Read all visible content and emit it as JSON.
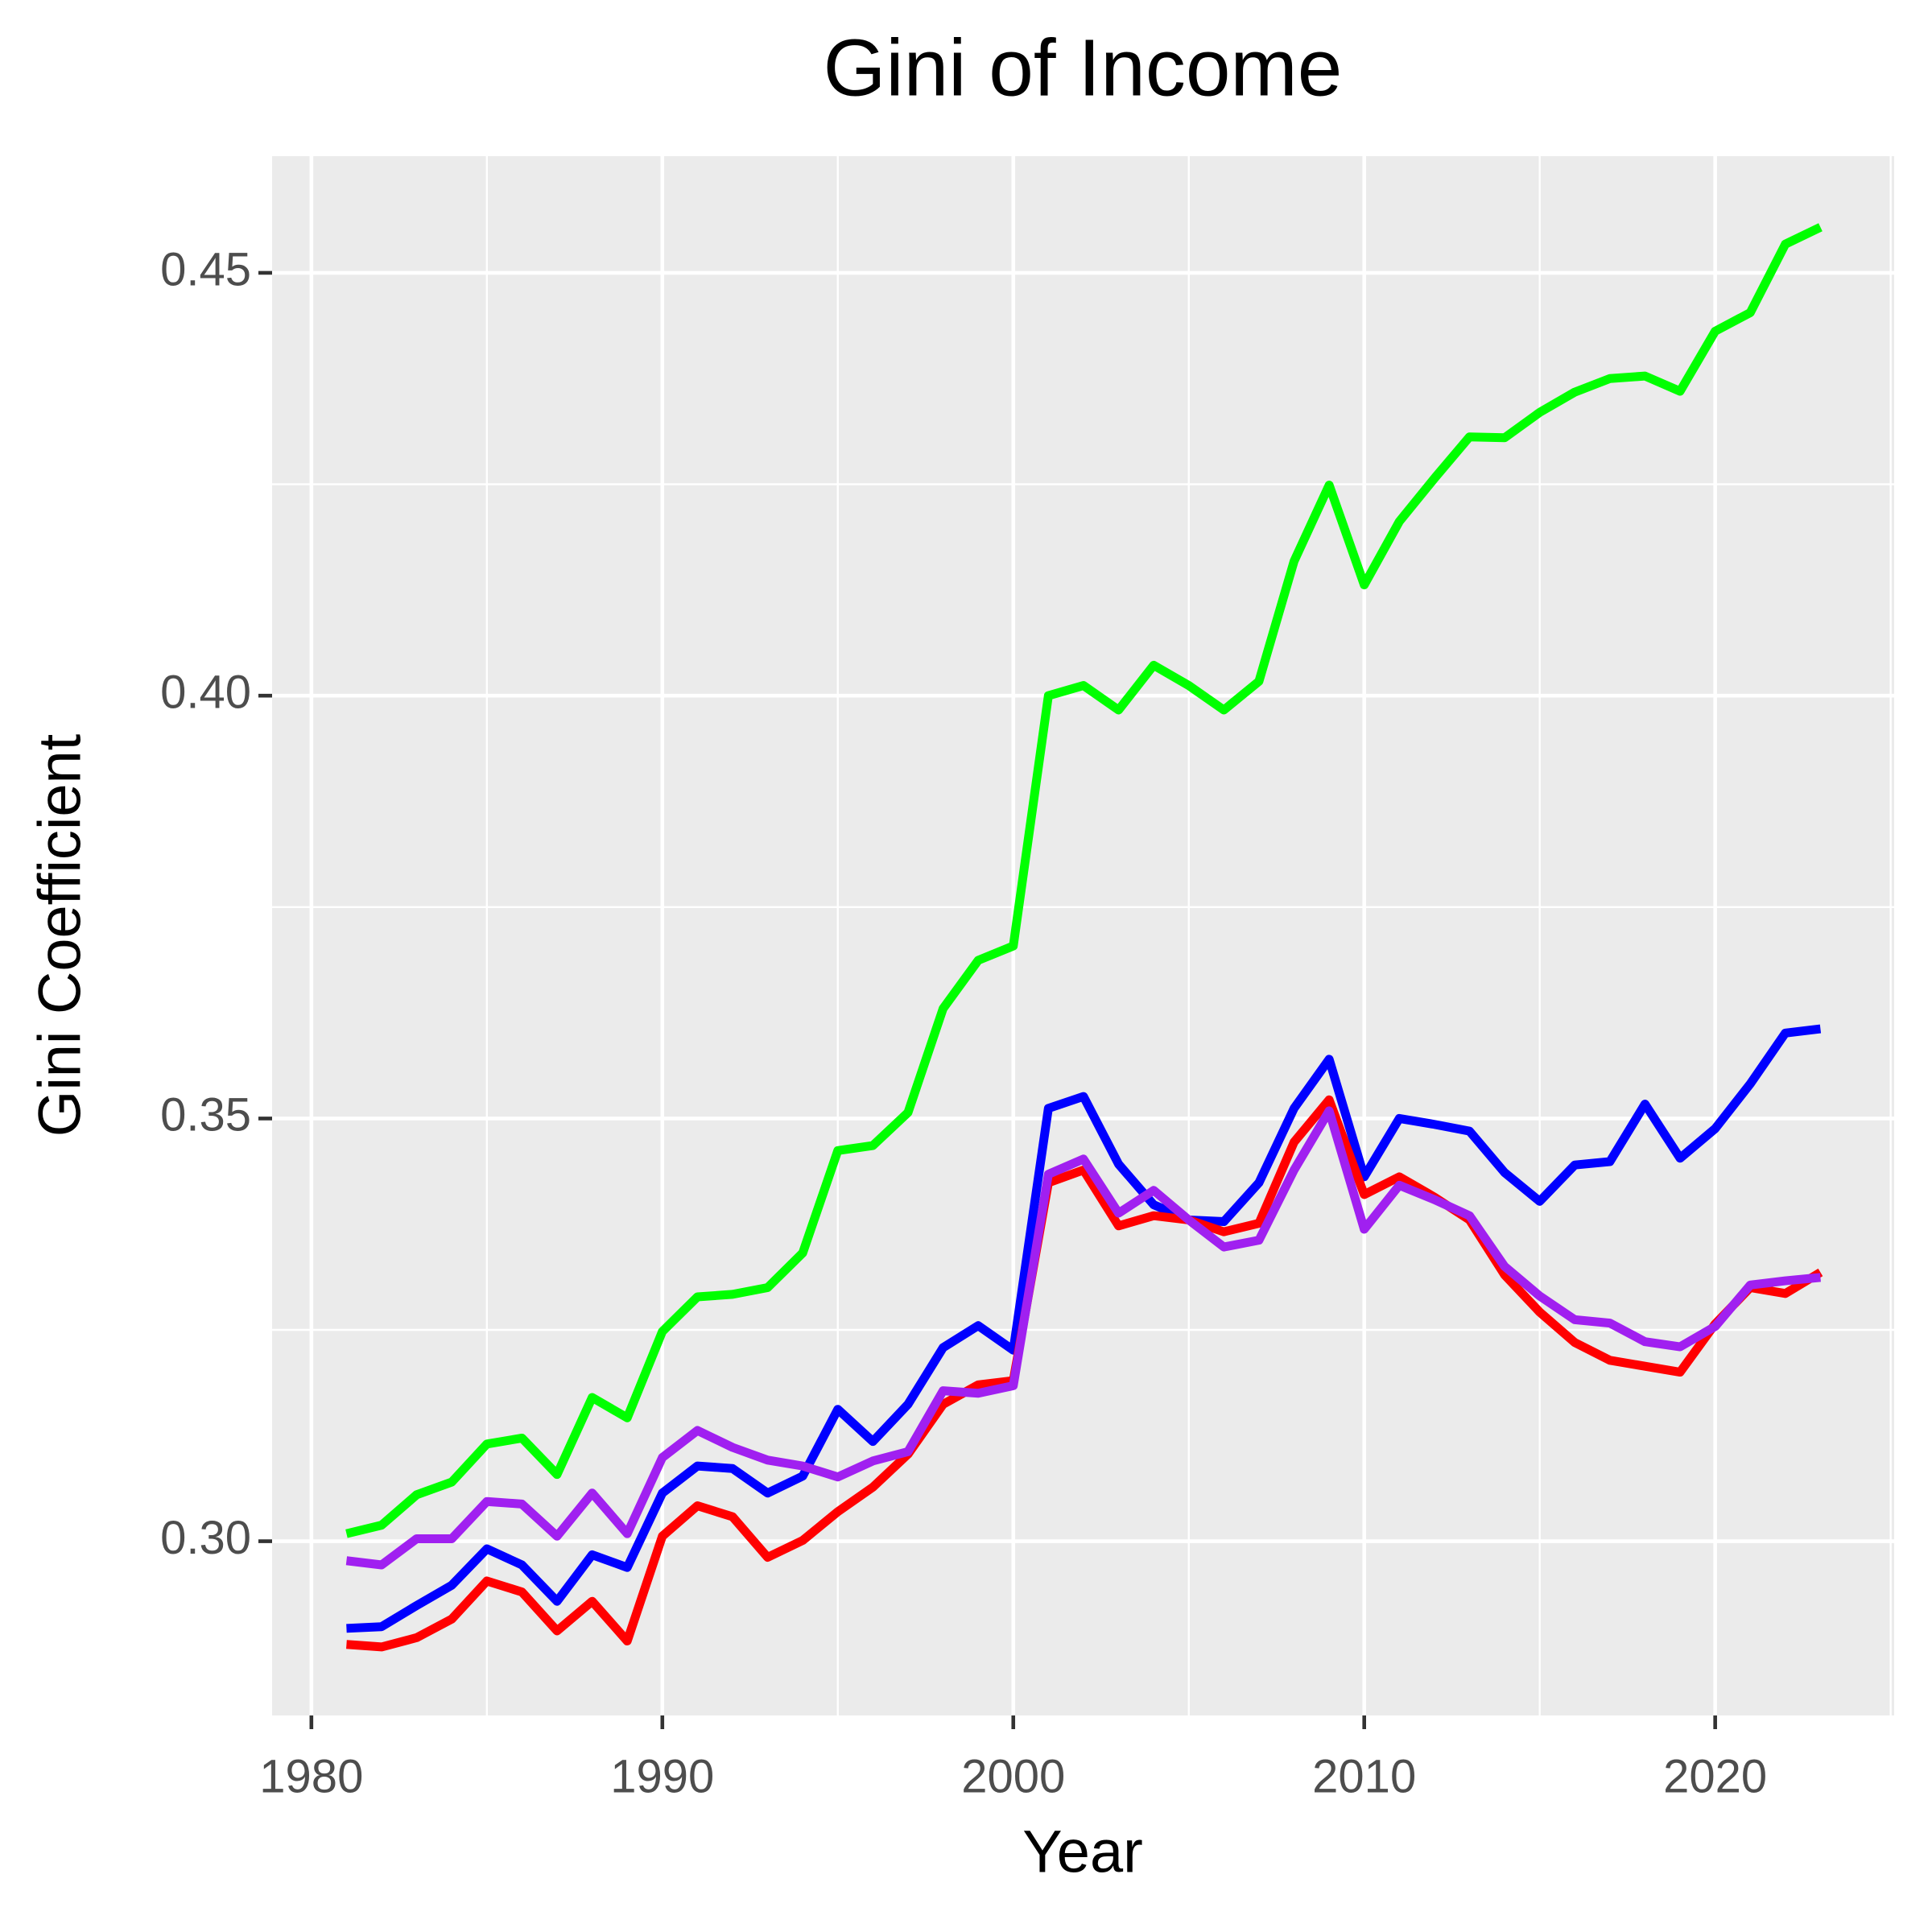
{
  "chart_data": {
    "type": "line",
    "title": "Gini of Income",
    "x_label": "Year",
    "y_label": "Gini Coefficient",
    "x": [
      1981,
      1982,
      1983,
      1984,
      1985,
      1986,
      1987,
      1988,
      1989,
      1990,
      1991,
      1992,
      1993,
      1994,
      1995,
      1996,
      1997,
      1998,
      1999,
      2000,
      2001,
      2002,
      2003,
      2004,
      2005,
      2006,
      2007,
      2008,
      2009,
      2010,
      2011,
      2012,
      2013,
      2014,
      2015,
      2016,
      2017,
      2018,
      2019,
      2020,
      2021,
      2022,
      2023
    ],
    "series": [
      {
        "color": "#00ff00",
        "values": [
          0.3009,
          0.3019,
          0.3055,
          0.307,
          0.3115,
          0.3122,
          0.3079,
          0.317,
          0.3146,
          0.3248,
          0.3289,
          0.3292,
          0.33,
          0.3341,
          0.3462,
          0.3468,
          0.3507,
          0.363,
          0.3687,
          0.3704,
          0.4,
          0.4012,
          0.3983,
          0.4036,
          0.4012,
          0.3983,
          0.4017,
          0.4159,
          0.4249,
          0.4131,
          0.4206,
          0.4257,
          0.4306,
          0.4305,
          0.4335,
          0.4359,
          0.4375,
          0.4378,
          0.436,
          0.4431,
          0.4453,
          0.4534,
          0.4554
        ]
      },
      {
        "color": "#0000ff",
        "values": [
          0.2897,
          0.2899,
          0.2924,
          0.2948,
          0.2991,
          0.2972,
          0.2929,
          0.2984,
          0.2969,
          0.3057,
          0.3089,
          0.3086,
          0.3057,
          0.3077,
          0.3156,
          0.3118,
          0.3162,
          0.3229,
          0.3255,
          0.3226,
          0.3512,
          0.3526,
          0.3446,
          0.3398,
          0.338,
          0.3378,
          0.3424,
          0.3512,
          0.357,
          0.3431,
          0.35,
          0.3493,
          0.3485,
          0.3436,
          0.3402,
          0.3445,
          0.3449,
          0.3517,
          0.3453,
          0.3488,
          0.3541,
          0.3601,
          0.3606
        ]
      },
      {
        "color": "#ff0000",
        "values": [
          0.2878,
          0.2875,
          0.2886,
          0.2908,
          0.2953,
          0.294,
          0.2894,
          0.2929,
          0.2882,
          0.3006,
          0.3042,
          0.3029,
          0.2981,
          0.3001,
          0.3035,
          0.3064,
          0.3103,
          0.3162,
          0.3185,
          0.319,
          0.3424,
          0.3439,
          0.3373,
          0.3385,
          0.338,
          0.3366,
          0.3376,
          0.3472,
          0.3522,
          0.341,
          0.3431,
          0.3407,
          0.338,
          0.3315,
          0.3271,
          0.3235,
          0.3214,
          0.3207,
          0.32,
          0.3257,
          0.33,
          0.3293,
          0.3318
        ]
      },
      {
        "color": "#a020f0",
        "values": [
          0.2977,
          0.2972,
          0.3003,
          0.3003,
          0.3047,
          0.3044,
          0.3006,
          0.3057,
          0.3009,
          0.3099,
          0.3131,
          0.3111,
          0.3096,
          0.3089,
          0.3076,
          0.3095,
          0.3106,
          0.3178,
          0.3175,
          0.3184,
          0.3434,
          0.3452,
          0.3388,
          0.3415,
          0.338,
          0.3348,
          0.3356,
          0.3439,
          0.3509,
          0.3369,
          0.3421,
          0.3404,
          0.3385,
          0.3325,
          0.329,
          0.3262,
          0.3258,
          0.3236,
          0.323,
          0.3254,
          0.3303,
          0.3308,
          0.3312
        ]
      }
    ],
    "xlim": [
      1978.88,
      2025.1
    ],
    "ylim": [
      0.2794,
      0.4638
    ],
    "xticks": [
      1980,
      1990,
      2000,
      2010,
      2020
    ],
    "yticks": [
      {
        "value": 0.3,
        "label": "0.30"
      },
      0.35,
      {
        "value": 0.4,
        "label": "0.40"
      },
      0.45
    ],
    "x_minor_grid": [
      1985,
      1995,
      2005,
      2015,
      2025
    ],
    "y_minor_grid": [
      0.325,
      0.375,
      0.425
    ],
    "grid": true
  }
}
